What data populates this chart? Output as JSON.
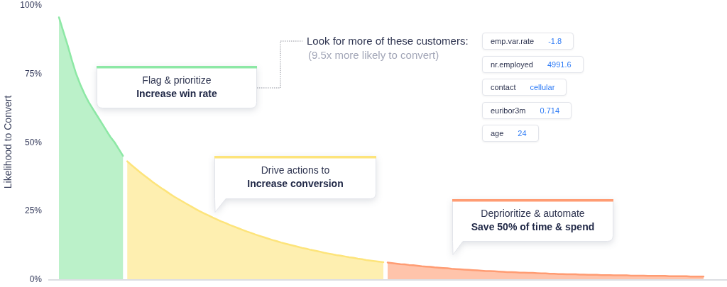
{
  "chart_data": {
    "type": "area",
    "categories": [
      null,
      null,
      null,
      null,
      null,
      null,
      null,
      null,
      null,
      null,
      null,
      null,
      null,
      null,
      null,
      null,
      null,
      null,
      null,
      null,
      null,
      null,
      null,
      null,
      null,
      null,
      null,
      null,
      null,
      null,
      null,
      null,
      null,
      null,
      null,
      null,
      null,
      null,
      null,
      null,
      null,
      null,
      null,
      null,
      null,
      null,
      null,
      null,
      null,
      null,
      null,
      null,
      null,
      null,
      null,
      null,
      null,
      null,
      null,
      null,
      null,
      null,
      null,
      null,
      null,
      null,
      null,
      null,
      null,
      null,
      null,
      null,
      null,
      null,
      null,
      null,
      null,
      null,
      null,
      null,
      null,
      null,
      null,
      null,
      null,
      null,
      null,
      null,
      null,
      null,
      null,
      null,
      null,
      null,
      null,
      null,
      null,
      null,
      null,
      null,
      null,
      null,
      null,
      null,
      null,
      null,
      null,
      null,
      null,
      null,
      null,
      null,
      null,
      null,
      null,
      null,
      null,
      null,
      null,
      null,
      null,
      null,
      null,
      null,
      null,
      null,
      null,
      null,
      null,
      null,
      null,
      null,
      null,
      null,
      null,
      null,
      null,
      null,
      null,
      null,
      null,
      null,
      null,
      null,
      null,
      null,
      null,
      null,
      null,
      null,
      null,
      null,
      null,
      null,
      null,
      null,
      null,
      null,
      null
    ],
    "series": [
      {
        "color": "#8de8a5",
        "values": [
          null,
          null,
          95.5,
          90.5,
          85.5,
          80,
          75,
          71,
          67.5,
          64.5,
          62,
          59.5,
          57,
          54.5,
          52,
          50,
          47.5,
          45,
          null,
          null,
          null,
          null,
          null,
          null,
          null,
          null,
          null,
          null,
          null,
          null,
          null,
          null,
          null,
          null,
          null,
          null,
          null,
          null,
          null,
          null,
          null,
          null,
          null,
          null,
          null,
          null,
          null,
          null,
          null,
          null,
          null,
          null,
          null,
          null,
          null,
          null,
          null,
          null,
          null,
          null,
          null,
          null,
          null,
          null,
          null,
          null,
          null,
          null,
          null,
          null,
          null,
          null,
          null,
          null,
          null,
          null,
          null,
          null,
          null,
          null,
          null,
          null,
          null,
          null,
          null,
          null,
          null,
          null,
          null,
          null,
          null,
          null,
          null,
          null,
          null,
          null,
          null,
          null,
          null,
          null,
          null,
          null,
          null,
          null,
          null,
          null,
          null,
          null,
          null,
          null,
          null,
          null,
          null,
          null,
          null,
          null,
          null,
          null,
          null,
          null,
          null,
          null,
          null,
          null,
          null,
          null,
          null,
          null,
          null,
          null,
          null,
          null,
          null,
          null,
          null,
          null,
          null,
          null,
          null,
          null,
          null,
          null,
          null,
          null,
          null,
          null,
          null,
          null,
          null,
          null,
          null,
          null,
          null,
          null,
          null,
          null,
          null,
          null,
          null
        ]
      },
      {
        "color": "#fde47b",
        "values": [
          null,
          null,
          null,
          null,
          null,
          null,
          null,
          null,
          null,
          null,
          null,
          null,
          null,
          null,
          null,
          null,
          null,
          null,
          43.0,
          41.6,
          40.3,
          39.0,
          37.8,
          36.6,
          35.4,
          34.3,
          33.2,
          32.2,
          31.1,
          30.1,
          29.2,
          28.3,
          27.4,
          26.5,
          25.6,
          24.8,
          24.0,
          23.3,
          22.5,
          21.8,
          21.1,
          20.5,
          19.8,
          19.2,
          18.6,
          18.0,
          17.4,
          16.9,
          16.3,
          15.8,
          15.3,
          14.8,
          14.3,
          13.9,
          13.4,
          13.0,
          12.6,
          12.2,
          11.8,
          11.4,
          11.1,
          10.7,
          10.4,
          10.1,
          9.7,
          9.4,
          9.1,
          8.8,
          8.6,
          8.3,
          8.0,
          7.8,
          7.5,
          7.3,
          7.0,
          6.8,
          6.6,
          6.4,
          6.2,
          null,
          null,
          null,
          null,
          null,
          null,
          null,
          null,
          null,
          null,
          null,
          null,
          null,
          null,
          null,
          null,
          null,
          null,
          null,
          null,
          null,
          null,
          null,
          null,
          null,
          null,
          null,
          null,
          null,
          null,
          null,
          null,
          null,
          null,
          null,
          null,
          null,
          null,
          null,
          null,
          null,
          null,
          null,
          null,
          null,
          null,
          null,
          null,
          null,
          null,
          null,
          null,
          null,
          null,
          null,
          null,
          null,
          null,
          null,
          null,
          null,
          null,
          null,
          null,
          null,
          null,
          null,
          null,
          null,
          null,
          null,
          null,
          null,
          null,
          null,
          null,
          null,
          null,
          null,
          null
        ]
      },
      {
        "color": "#ff9c73",
        "values": [
          null,
          null,
          null,
          null,
          null,
          null,
          null,
          null,
          null,
          null,
          null,
          null,
          null,
          null,
          null,
          null,
          null,
          null,
          null,
          null,
          null,
          null,
          null,
          null,
          null,
          null,
          null,
          null,
          null,
          null,
          null,
          null,
          null,
          null,
          null,
          null,
          null,
          null,
          null,
          null,
          null,
          null,
          null,
          null,
          null,
          null,
          null,
          null,
          null,
          null,
          null,
          null,
          null,
          null,
          null,
          null,
          null,
          null,
          null,
          null,
          null,
          null,
          null,
          null,
          null,
          null,
          null,
          null,
          null,
          null,
          null,
          null,
          null,
          null,
          null,
          null,
          null,
          null,
          null,
          6.1,
          5.9,
          5.7,
          5.5,
          5.4,
          5.2,
          5.1,
          4.9,
          4.7,
          4.6,
          4.5,
          4.3,
          4.2,
          4.1,
          4.0,
          3.8,
          3.7,
          3.6,
          3.5,
          3.4,
          3.3,
          3.2,
          3.1,
          3.0,
          3.0,
          2.9,
          2.8,
          2.7,
          2.6,
          2.6,
          2.5,
          2.4,
          2.4,
          2.3,
          2.3,
          2.2,
          2.1,
          2.1,
          2.0,
          2.0,
          1.9,
          1.9,
          1.8,
          1.8,
          1.8,
          1.7,
          1.7,
          1.6,
          1.6,
          1.6,
          1.5,
          1.5,
          1.5,
          1.4,
          1.4,
          1.4,
          1.4,
          1.3,
          1.3,
          1.3,
          1.3,
          1.2,
          1.2,
          1.2,
          1.2,
          1.2,
          1.1,
          1.1,
          1.1,
          1.1,
          1.1,
          1.0,
          1.0,
          1.0,
          1.0,
          null,
          null,
          null,
          null,
          null
        ]
      }
    ],
    "ylabel": "Likelihood to Convert",
    "ylim": [
      0,
      100
    ],
    "yticks": [
      {
        "value": 0,
        "label": "0%"
      },
      {
        "value": 25,
        "label": "25%"
      },
      {
        "value": 50,
        "label": "50%"
      },
      {
        "value": 75,
        "label": "75%"
      },
      {
        "value": 100,
        "label": "100%"
      }
    ],
    "tick_labels": "y",
    "grid": false,
    "annotations": [
      "Flag & prioritize\nIncrease win rate",
      "Drive actions to\nIncrease conversion",
      "Deprioritize & automate\nSave 50% of time & spend",
      "Look for more of these customers:",
      "(9.5x more likely to convert)",
      "emp.var.rate",
      "-1.8",
      "nr.employed",
      "4991.6",
      "contact",
      "cellular",
      "euribor3m",
      "0.714",
      "age",
      "24"
    ]
  }
}
